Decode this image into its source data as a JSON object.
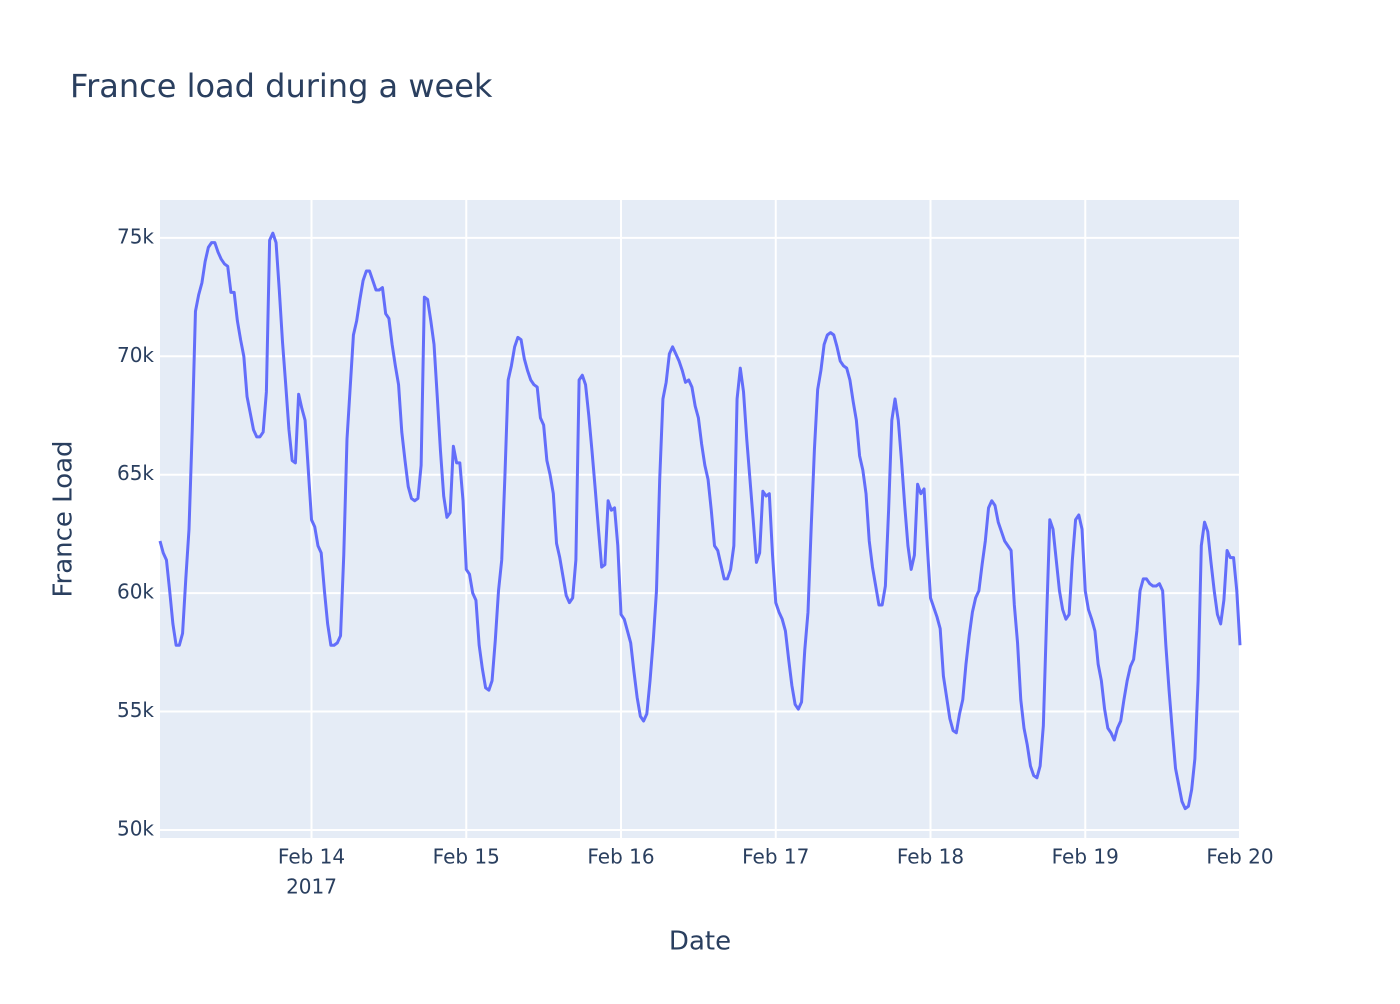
{
  "chart_data": {
    "type": "line",
    "title": "France load during a week",
    "xlabel": "Date",
    "ylabel": "France Load",
    "x_year_label": "2017",
    "color": "#636efa",
    "grid": true,
    "xlim": [
      "2017-02-13 00:30",
      "2017-02-20 00:00"
    ],
    "ylim": [
      49660,
      76600
    ],
    "xticks": [
      {
        "value": "2017-02-14 00:00",
        "label": "Feb 14"
      },
      {
        "value": "2017-02-15 00:00",
        "label": "Feb 15"
      },
      {
        "value": "2017-02-16 00:00",
        "label": "Feb 16"
      },
      {
        "value": "2017-02-17 00:00",
        "label": "Feb 17"
      },
      {
        "value": "2017-02-18 00:00",
        "label": "Feb 18"
      },
      {
        "value": "2017-02-19 00:00",
        "label": "Feb 19"
      },
      {
        "value": "2017-02-20 00:00",
        "label": "Feb 20"
      }
    ],
    "yticks": [
      {
        "value": 50000,
        "label": "50k"
      },
      {
        "value": 55000,
        "label": "55k"
      },
      {
        "value": 60000,
        "label": "60k"
      },
      {
        "value": 65000,
        "label": "65k"
      },
      {
        "value": 70000,
        "label": "70k"
      },
      {
        "value": 75000,
        "label": "75k"
      }
    ],
    "x": [
      "2017-02-13 00:30",
      "2017-02-13 01:00",
      "2017-02-13 01:30",
      "2017-02-13 02:00",
      "2017-02-13 02:30",
      "2017-02-13 03:00",
      "2017-02-13 03:30",
      "2017-02-13 04:00",
      "2017-02-13 04:30",
      "2017-02-13 05:00",
      "2017-02-13 05:30",
      "2017-02-13 06:00",
      "2017-02-13 06:30",
      "2017-02-13 07:00",
      "2017-02-13 07:30",
      "2017-02-13 08:00",
      "2017-02-13 08:30",
      "2017-02-13 09:00",
      "2017-02-13 09:30",
      "2017-02-13 10:00",
      "2017-02-13 10:30",
      "2017-02-13 11:00",
      "2017-02-13 11:30",
      "2017-02-13 12:00",
      "2017-02-13 12:30",
      "2017-02-13 13:00",
      "2017-02-13 13:30",
      "2017-02-13 14:00",
      "2017-02-13 14:30",
      "2017-02-13 15:00",
      "2017-02-13 15:30",
      "2017-02-13 16:00",
      "2017-02-13 16:30",
      "2017-02-13 17:00",
      "2017-02-13 17:30",
      "2017-02-13 18:00",
      "2017-02-13 18:30",
      "2017-02-13 19:00",
      "2017-02-13 19:30",
      "2017-02-13 20:00",
      "2017-02-13 20:30",
      "2017-02-13 21:00",
      "2017-02-13 21:30",
      "2017-02-13 22:00",
      "2017-02-13 22:30",
      "2017-02-13 23:00",
      "2017-02-13 23:30",
      "2017-02-14 00:00",
      "2017-02-14 00:30",
      "2017-02-14 01:00",
      "2017-02-14 01:30",
      "2017-02-14 02:00",
      "2017-02-14 02:30",
      "2017-02-14 03:00",
      "2017-02-14 03:30",
      "2017-02-14 04:00",
      "2017-02-14 04:30",
      "2017-02-14 05:00",
      "2017-02-14 05:30",
      "2017-02-14 06:00",
      "2017-02-14 06:30",
      "2017-02-14 07:00",
      "2017-02-14 07:30",
      "2017-02-14 08:00",
      "2017-02-14 08:30",
      "2017-02-14 09:00",
      "2017-02-14 09:30",
      "2017-02-14 10:00",
      "2017-02-14 10:30",
      "2017-02-14 11:00",
      "2017-02-14 11:30",
      "2017-02-14 12:00",
      "2017-02-14 12:30",
      "2017-02-14 13:00",
      "2017-02-14 13:30",
      "2017-02-14 14:00",
      "2017-02-14 14:30",
      "2017-02-14 15:00",
      "2017-02-14 15:30",
      "2017-02-14 16:00",
      "2017-02-14 16:30",
      "2017-02-14 17:00",
      "2017-02-14 17:30",
      "2017-02-14 18:00",
      "2017-02-14 18:30",
      "2017-02-14 19:00",
      "2017-02-14 19:30",
      "2017-02-14 20:00",
      "2017-02-14 20:30",
      "2017-02-14 21:00",
      "2017-02-14 21:30",
      "2017-02-14 22:00",
      "2017-02-14 22:30",
      "2017-02-14 23:00",
      "2017-02-14 23:30",
      "2017-02-15 00:00",
      "2017-02-15 00:30",
      "2017-02-15 01:00",
      "2017-02-15 01:30",
      "2017-02-15 02:00",
      "2017-02-15 02:30",
      "2017-02-15 03:00",
      "2017-02-15 03:30",
      "2017-02-15 04:00",
      "2017-02-15 04:30",
      "2017-02-15 05:00",
      "2017-02-15 05:30",
      "2017-02-15 06:00",
      "2017-02-15 06:30",
      "2017-02-15 07:00",
      "2017-02-15 07:30",
      "2017-02-15 08:00",
      "2017-02-15 08:30",
      "2017-02-15 09:00",
      "2017-02-15 09:30",
      "2017-02-15 10:00",
      "2017-02-15 10:30",
      "2017-02-15 11:00",
      "2017-02-15 11:30",
      "2017-02-15 12:00",
      "2017-02-15 12:30",
      "2017-02-15 13:00",
      "2017-02-15 13:30",
      "2017-02-15 14:00",
      "2017-02-15 14:30",
      "2017-02-15 15:00",
      "2017-02-15 15:30",
      "2017-02-15 16:00",
      "2017-02-15 16:30",
      "2017-02-15 17:00",
      "2017-02-15 17:30",
      "2017-02-15 18:00",
      "2017-02-15 18:30",
      "2017-02-15 19:00",
      "2017-02-15 19:30",
      "2017-02-15 20:00",
      "2017-02-15 20:30",
      "2017-02-15 21:00",
      "2017-02-15 21:30",
      "2017-02-15 22:00",
      "2017-02-15 22:30",
      "2017-02-15 23:00",
      "2017-02-15 23:30",
      "2017-02-16 00:00",
      "2017-02-16 00:30",
      "2017-02-16 01:00",
      "2017-02-16 01:30",
      "2017-02-16 02:00",
      "2017-02-16 02:30",
      "2017-02-16 03:00",
      "2017-02-16 03:30",
      "2017-02-16 04:00",
      "2017-02-16 04:30",
      "2017-02-16 05:00",
      "2017-02-16 05:30",
      "2017-02-16 06:00",
      "2017-02-16 06:30",
      "2017-02-16 07:00",
      "2017-02-16 07:30",
      "2017-02-16 08:00",
      "2017-02-16 08:30",
      "2017-02-16 09:00",
      "2017-02-16 09:30",
      "2017-02-16 10:00",
      "2017-02-16 10:30",
      "2017-02-16 11:00",
      "2017-02-16 11:30",
      "2017-02-16 12:00",
      "2017-02-16 12:30",
      "2017-02-16 13:00",
      "2017-02-16 13:30",
      "2017-02-16 14:00",
      "2017-02-16 14:30",
      "2017-02-16 15:00",
      "2017-02-16 15:30",
      "2017-02-16 16:00",
      "2017-02-16 16:30",
      "2017-02-16 17:00",
      "2017-02-16 17:30",
      "2017-02-16 18:00",
      "2017-02-16 18:30",
      "2017-02-16 19:00",
      "2017-02-16 19:30",
      "2017-02-16 20:00",
      "2017-02-16 20:30",
      "2017-02-16 21:00",
      "2017-02-16 21:30",
      "2017-02-16 22:00",
      "2017-02-16 22:30",
      "2017-02-16 23:00",
      "2017-02-16 23:30",
      "2017-02-17 00:00",
      "2017-02-17 00:30",
      "2017-02-17 01:00",
      "2017-02-17 01:30",
      "2017-02-17 02:00",
      "2017-02-17 02:30",
      "2017-02-17 03:00",
      "2017-02-17 03:30",
      "2017-02-17 04:00",
      "2017-02-17 04:30",
      "2017-02-17 05:00",
      "2017-02-17 05:30",
      "2017-02-17 06:00",
      "2017-02-17 06:30",
      "2017-02-17 07:00",
      "2017-02-17 07:30",
      "2017-02-17 08:00",
      "2017-02-17 08:30",
      "2017-02-17 09:00",
      "2017-02-17 09:30",
      "2017-02-17 10:00",
      "2017-02-17 10:30",
      "2017-02-17 11:00",
      "2017-02-17 11:30",
      "2017-02-17 12:00",
      "2017-02-17 12:30",
      "2017-02-17 13:00",
      "2017-02-17 13:30",
      "2017-02-17 14:00",
      "2017-02-17 14:30",
      "2017-02-17 15:00",
      "2017-02-17 15:30",
      "2017-02-17 16:00",
      "2017-02-17 16:30",
      "2017-02-17 17:00",
      "2017-02-17 17:30",
      "2017-02-17 18:00",
      "2017-02-17 18:30",
      "2017-02-17 19:00",
      "2017-02-17 19:30",
      "2017-02-17 20:00",
      "2017-02-17 20:30",
      "2017-02-17 21:00",
      "2017-02-17 21:30",
      "2017-02-17 22:00",
      "2017-02-17 22:30",
      "2017-02-17 23:00",
      "2017-02-17 23:30",
      "2017-02-18 00:00",
      "2017-02-18 00:30",
      "2017-02-18 01:00",
      "2017-02-18 01:30",
      "2017-02-18 02:00",
      "2017-02-18 02:30",
      "2017-02-18 03:00",
      "2017-02-18 03:30",
      "2017-02-18 04:00",
      "2017-02-18 04:30",
      "2017-02-18 05:00",
      "2017-02-18 05:30",
      "2017-02-18 06:00",
      "2017-02-18 06:30",
      "2017-02-18 07:00",
      "2017-02-18 07:30",
      "2017-02-18 08:00",
      "2017-02-18 08:30",
      "2017-02-18 09:00",
      "2017-02-18 09:30",
      "2017-02-18 10:00",
      "2017-02-18 10:30",
      "2017-02-18 11:00",
      "2017-02-18 11:30",
      "2017-02-18 12:00",
      "2017-02-18 12:30",
      "2017-02-18 13:00",
      "2017-02-18 13:30",
      "2017-02-18 14:00",
      "2017-02-18 14:30",
      "2017-02-18 15:00",
      "2017-02-18 15:30",
      "2017-02-18 16:00",
      "2017-02-18 16:30",
      "2017-02-18 17:00",
      "2017-02-18 17:30",
      "2017-02-18 18:00",
      "2017-02-18 18:30",
      "2017-02-18 19:00",
      "2017-02-18 19:30",
      "2017-02-18 20:00",
      "2017-02-18 20:30",
      "2017-02-18 21:00",
      "2017-02-18 21:30",
      "2017-02-18 22:00",
      "2017-02-18 22:30",
      "2017-02-18 23:00",
      "2017-02-18 23:30",
      "2017-02-19 00:00",
      "2017-02-19 00:30",
      "2017-02-19 01:00",
      "2017-02-19 01:30",
      "2017-02-19 02:00",
      "2017-02-19 02:30",
      "2017-02-19 03:00",
      "2017-02-19 03:30",
      "2017-02-19 04:00",
      "2017-02-19 04:30",
      "2017-02-19 05:00",
      "2017-02-19 05:30",
      "2017-02-19 06:00",
      "2017-02-19 06:30",
      "2017-02-19 07:00",
      "2017-02-19 07:30",
      "2017-02-19 08:00",
      "2017-02-19 08:30",
      "2017-02-19 09:00",
      "2017-02-19 09:30",
      "2017-02-19 10:00",
      "2017-02-19 10:30",
      "2017-02-19 11:00",
      "2017-02-19 11:30",
      "2017-02-19 12:00",
      "2017-02-19 12:30",
      "2017-02-19 13:00",
      "2017-02-19 13:30",
      "2017-02-19 14:00",
      "2017-02-19 14:30",
      "2017-02-19 15:00",
      "2017-02-19 15:30",
      "2017-02-19 16:00",
      "2017-02-19 16:30",
      "2017-02-19 17:00",
      "2017-02-19 17:30",
      "2017-02-19 18:00",
      "2017-02-19 18:30",
      "2017-02-19 19:00",
      "2017-02-19 19:30",
      "2017-02-19 20:00",
      "2017-02-19 20:30",
      "2017-02-19 21:00",
      "2017-02-19 21:30",
      "2017-02-19 22:00",
      "2017-02-19 22:30",
      "2017-02-19 23:00",
      "2017-02-19 23:30",
      "2017-02-20 00:00"
    ],
    "values": [
      62200,
      61700,
      61400,
      60100,
      58700,
      57800,
      57800,
      58300,
      60600,
      62700,
      66900,
      71900,
      72600,
      73100,
      74000,
      74600,
      74800,
      74800,
      74400,
      74100,
      73900,
      73800,
      72700,
      72700,
      71500,
      70700,
      70000,
      68300,
      67600,
      66900,
      66600,
      66600,
      66800,
      68500,
      74900,
      75200,
      74800,
      72800,
      70600,
      68800,
      66900,
      65600,
      65500,
      68400,
      67800,
      67300,
      65200,
      63100,
      62800,
      62000,
      61700,
      60100,
      58700,
      57800,
      57800,
      57900,
      58200,
      61600,
      66500,
      68700,
      70900,
      71500,
      72400,
      73200,
      73600,
      73600,
      73200,
      72800,
      72800,
      72900,
      71800,
      71600,
      70500,
      69600,
      68800,
      66800,
      65600,
      64500,
      64000,
      63900,
      64000,
      65400,
      72500,
      72400,
      71500,
      70500,
      68300,
      66000,
      64100,
      63200,
      63400,
      66200,
      65500,
      65500,
      63900,
      61000,
      60800,
      60000,
      59700,
      57800,
      56800,
      56000,
      55900,
      56300,
      58000,
      60100,
      61400,
      65000,
      69000,
      69600,
      70400,
      70800,
      70700,
      69900,
      69400,
      69000,
      68800,
      68700,
      67400,
      67100,
      65600,
      65000,
      64200,
      62100,
      61500,
      60700,
      59900,
      59600,
      59800,
      61400,
      69000,
      69200,
      68800,
      67500,
      66000,
      64400,
      62700,
      61100,
      61200,
      63900,
      63500,
      63600,
      62000,
      59100,
      58900,
      58400,
      57900,
      56700,
      55600,
      54800,
      54600,
      54900,
      56300,
      58000,
      60100,
      64800,
      68200,
      68900,
      70100,
      70400,
      70100,
      69800,
      69400,
      68900,
      69000,
      68700,
      67900,
      67400,
      66300,
      65400,
      64800,
      63500,
      62000,
      61800,
      61200,
      60600,
      60600,
      61000,
      62000,
      68200,
      69500,
      68500,
      66500,
      64800,
      63100,
      61300,
      61700,
      64300,
      64100,
      64200,
      61600,
      59600,
      59200,
      58900,
      58400,
      57200,
      56100,
      55300,
      55100,
      55400,
      57600,
      59200,
      62800,
      66100,
      68600,
      69400,
      70500,
      70900,
      71000,
      70900,
      70400,
      69800,
      69600,
      69500,
      69000,
      68100,
      67300,
      65800,
      65200,
      64200,
      62200,
      61100,
      60300,
      59500,
      59500,
      60300,
      63500,
      67300,
      68200,
      67300,
      65600,
      63700,
      62000,
      61000,
      61600,
      64600,
      64200,
      64400,
      62000,
      59800,
      59400,
      59000,
      58500,
      56500,
      55600,
      54700,
      54200,
      54100,
      54900,
      55500,
      57000,
      58200,
      59200,
      59800,
      60100,
      61200,
      62200,
      63600,
      63900,
      63700,
      63000,
      62600,
      62200,
      62000,
      61800,
      59500,
      57900,
      55500,
      54300,
      53600,
      52700,
      52300,
      52200,
      52700,
      54400,
      58900,
      63100,
      62700,
      61400,
      60100,
      59300,
      58900,
      59100,
      61400,
      63100,
      63300,
      62700,
      60100,
      59300,
      58900,
      58400,
      57000,
      56300,
      55100,
      54300,
      54100,
      53800,
      54300,
      54600,
      55500,
      56300,
      56900,
      57200,
      58400,
      60100,
      60600,
      60600,
      60400,
      60300,
      60300,
      60400,
      60100,
      57800,
      55900,
      54200,
      52600,
      51900,
      51200,
      50900,
      51000,
      51700,
      53000,
      56300,
      62000,
      63000,
      62600,
      61300,
      60100,
      59100,
      58700,
      59700,
      61800,
      61500,
      61500,
      60100,
      57800
    ]
  }
}
